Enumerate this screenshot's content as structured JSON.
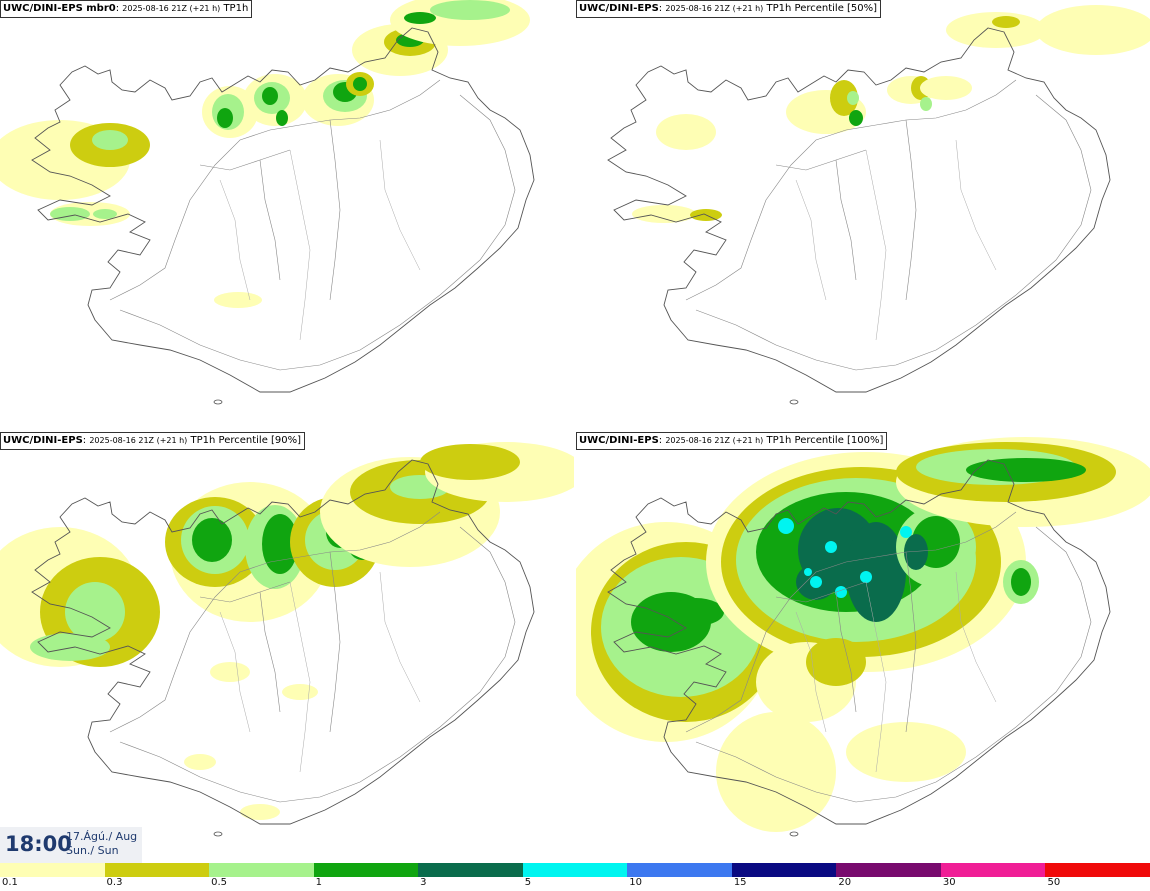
{
  "panels": [
    {
      "model": "UWC/DINI-EPS mbr0",
      "date": "2025-08-16 21Z (+21 h)",
      "field": "TP1h",
      "intensity": 1
    },
    {
      "model": "UWC/DINI-EPS",
      "date": "2025-08-16 21Z (+21 h)",
      "field": "TP1h Percentile [50%]",
      "intensity": 0
    },
    {
      "model": "UWC/DINI-EPS",
      "date": "2025-08-16 21Z (+21 h)",
      "field": "TP1h Percentile [90%]",
      "intensity": 2
    },
    {
      "model": "UWC/DINI-EPS",
      "date": "2025-08-16 21Z (+21 h)",
      "field": "TP1h Percentile [100%]",
      "intensity": 3
    }
  ],
  "valid_time": {
    "time": "18:00",
    "date_line1": "17.Ágú./ Aug",
    "date_line2": "Sun./ Sun"
  },
  "legend": {
    "colors": [
      "#fefeb4",
      "#cdcd10",
      "#a6f28c",
      "#10a510",
      "#0a6c4c",
      "#00f5f0",
      "#3c78f0",
      "#0a0a82",
      "#780a6e",
      "#f01e96",
      "#f00a0a"
    ],
    "labels": [
      "0.1",
      "0.3",
      "0.5",
      "1",
      "3",
      "5",
      "10",
      "15",
      "20",
      "30",
      "50"
    ]
  }
}
